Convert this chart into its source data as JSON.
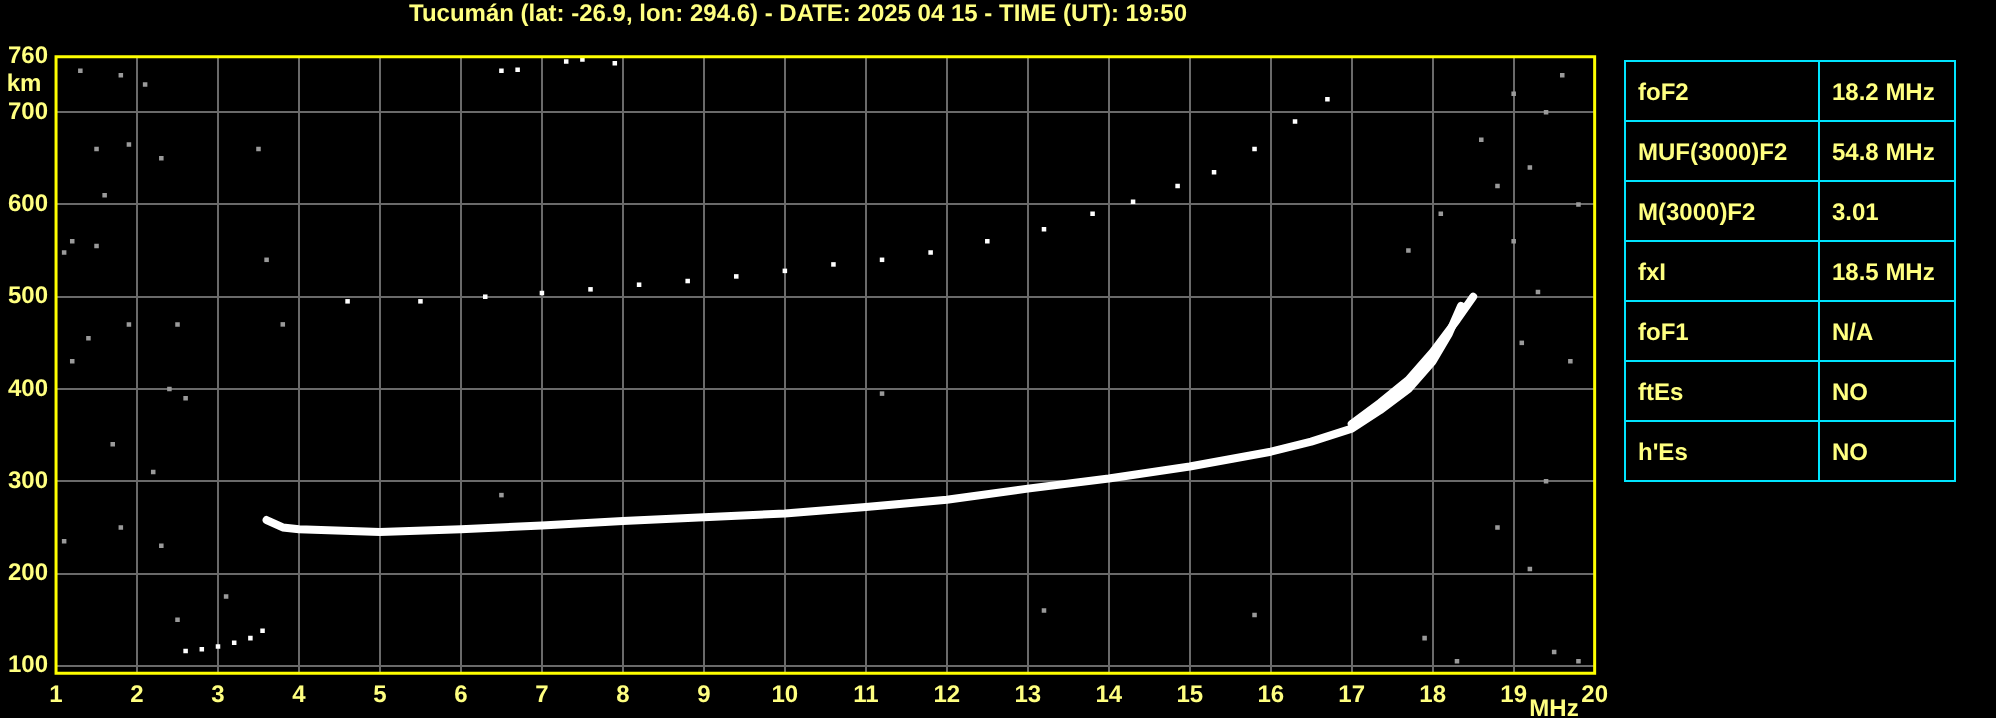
{
  "chart_data": [
    {
      "type": "scatter",
      "title": "Tucumán (lat: -26.9, lon: 294.6) - DATE: 2025 04 15 - TIME (UT): 19:50",
      "xlabel": "MHz",
      "ylabel": "km",
      "xlim": [
        1,
        20
      ],
      "xticks": [
        1,
        2,
        3,
        4,
        5,
        6,
        7,
        8,
        9,
        10,
        11,
        12,
        13,
        14,
        15,
        16,
        17,
        18,
        19,
        20
      ],
      "ylim": [
        92,
        760
      ],
      "yticks": [
        100,
        200,
        300,
        400,
        500,
        600,
        700,
        760
      ],
      "grid": true,
      "series": [
        {
          "type": "line",
          "marker": "none",
          "color": "#ffffff",
          "x": [
            3.6,
            3.8,
            4,
            5,
            6,
            7,
            8,
            9,
            10,
            11,
            12,
            13,
            14,
            15,
            16,
            16.5,
            17,
            17.35,
            17.7,
            18,
            18.2,
            18.35
          ],
          "values": [
            258,
            250,
            248,
            245,
            248,
            252,
            257,
            261,
            265,
            272,
            280,
            292,
            303,
            316,
            332,
            343,
            357,
            377,
            400,
            430,
            460,
            490
          ]
        },
        {
          "type": "line",
          "marker": "none",
          "color": "#ffffff",
          "x": [
            17,
            17.35,
            17.7,
            18,
            18.3,
            18.5
          ],
          "values": [
            362,
            385,
            410,
            440,
            475,
            500
          ]
        },
        {
          "marker": "square",
          "color": "#ffffff",
          "x": [
            4.6,
            5.5,
            6.3,
            7,
            7.6,
            8.2,
            8.8,
            9.4,
            10,
            10.6,
            11.2,
            11.8,
            12.5,
            13.2,
            13.8,
            14.3,
            14.85,
            15.3,
            15.8,
            16.3,
            16.7,
            6.5,
            6.7,
            7.3,
            7.5,
            7.9,
            2.6,
            2.8,
            3.0,
            3.2,
            3.4,
            3.55
          ],
          "values": [
            495,
            495,
            500,
            504,
            508,
            513,
            517,
            522,
            528,
            535,
            540,
            548,
            560,
            573,
            590,
            603,
            620,
            635,
            660,
            690,
            714,
            745,
            746,
            755,
            757,
            753,
            116,
            118,
            121,
            125,
            130,
            138
          ]
        },
        {
          "marker": "square",
          "color": "#9a9a9a",
          "x": [
            1.3,
            1.8,
            2.1,
            1.5,
            1.9,
            2.3,
            1.6,
            1.2,
            1.5,
            1.1,
            1.9,
            1.4,
            2.5,
            2.4,
            1.2,
            2.6,
            1.7,
            2.2,
            1.8,
            2.3,
            1.1,
            2.5,
            3.1,
            3.5,
            3.6,
            3.8,
            6.5,
            11.2,
            13.2,
            15.8,
            17.7,
            18.1,
            18.8,
            19.2,
            19.4,
            19.0,
            19.6,
            19.8,
            19.3,
            19.1,
            19.7,
            19.4,
            18.8,
            19.2,
            19.5,
            19.8,
            18.3,
            17.9,
            19.0,
            18.6
          ],
          "values": [
            745,
            740,
            730,
            660,
            665,
            650,
            610,
            560,
            555,
            548,
            470,
            455,
            470,
            400,
            430,
            390,
            340,
            310,
            250,
            230,
            235,
            150,
            175,
            660,
            540,
            470,
            285,
            395,
            160,
            155,
            550,
            590,
            620,
            640,
            700,
            720,
            740,
            600,
            505,
            450,
            430,
            300,
            250,
            205,
            115,
            105,
            105,
            130,
            560,
            670
          ]
        }
      ]
    },
    {
      "type": "other",
      "annotations": [
        "foF2",
        "18.2 MHz",
        "MUF(3000)F2",
        "54.8 MHz",
        "M(3000)F2",
        "3.01",
        "fxI",
        "18.5 MHz",
        "foF1",
        "N/A",
        "ftEs",
        "NO",
        "h'Es",
        "NO"
      ]
    }
  ]
}
